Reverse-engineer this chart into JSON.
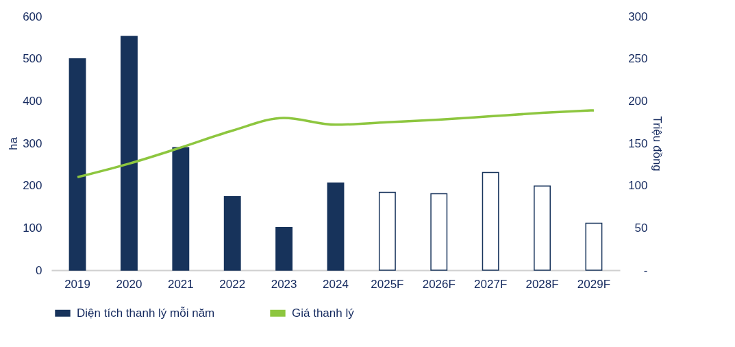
{
  "chart_data": {
    "type": "bar",
    "categories": [
      "2019",
      "2020",
      "2021",
      "2022",
      "2023",
      "2024",
      "2025F",
      "2026F",
      "2027F",
      "2028F",
      "2029F"
    ],
    "ylabel": "ha",
    "y2label": "Triệu đồng",
    "ylim": [
      0,
      600
    ],
    "yticks": [
      0,
      100,
      200,
      300,
      400,
      500,
      600
    ],
    "y2lim": [
      0,
      300
    ],
    "y2ticks": [
      {
        "value": 0,
        "label": "-"
      },
      50,
      100,
      150,
      200,
      250,
      300
    ],
    "grid": false,
    "legend": "bottom",
    "series": [
      {
        "name": "Diện tích thanh lý mỗi năm",
        "color": "#17335b",
        "colors": [
          "#17335b",
          "#17335b",
          "#17335b",
          "#17335b",
          "#17335b",
          "#17335b",
          "#ffffff",
          "#ffffff",
          "#ffffff",
          "#ffffff",
          "#ffffff"
        ],
        "values": [
          500,
          553,
          290,
          174,
          101,
          206,
          184,
          181,
          231,
          199,
          111
        ]
      },
      {
        "name": "Giá thanh lý",
        "type": "line",
        "axis": "y2",
        "color": "#8dc63f",
        "values": [
          110,
          126,
          145,
          165,
          180,
          172,
          175,
          178,
          182,
          186,
          189
        ]
      }
    ]
  }
}
